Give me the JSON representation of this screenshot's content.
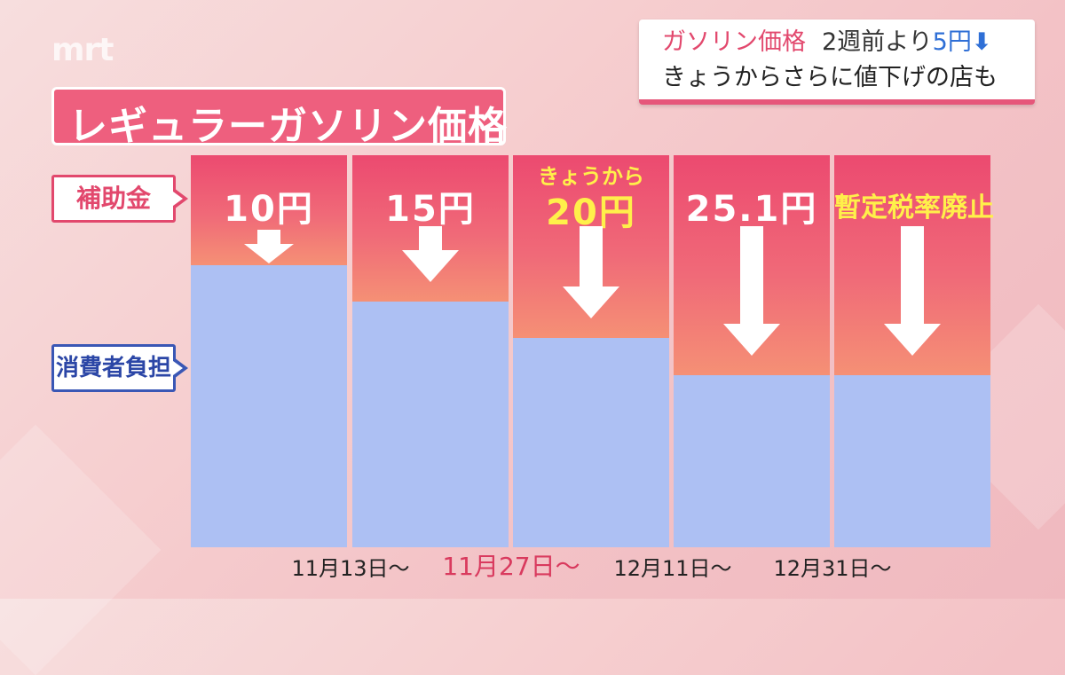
{
  "logo": "mrt",
  "headline": {
    "line1_part1": "ガソリン価格",
    "line1_part2": "2週前より",
    "line1_part3": "5円",
    "line1_arrow": "⬇",
    "line2": "きょうからさらに値下げの店も"
  },
  "colors": {
    "subsidy": "#ec4a70",
    "consumer": "#adc0f3",
    "highlight": "#d93a5e",
    "label_yellow": "#fff04a"
  },
  "chart_data": {
    "type": "bar",
    "title": "レギュラーガソリン価格",
    "series": [
      {
        "name": "補助金",
        "values": [
          10,
          15,
          20,
          25.1,
          25.1
        ]
      },
      {
        "name": "消費者負担"
      }
    ],
    "bar_labels": [
      "10円",
      "15円",
      "20円",
      "25.1円",
      "暫定税率廃止"
    ],
    "bar_sublabel": "きょうから",
    "x_tick_labels": [
      "11月13日～",
      "11月27日～",
      "12月11日～",
      "12月31日～"
    ],
    "highlighted_tick": "11月27日～"
  }
}
